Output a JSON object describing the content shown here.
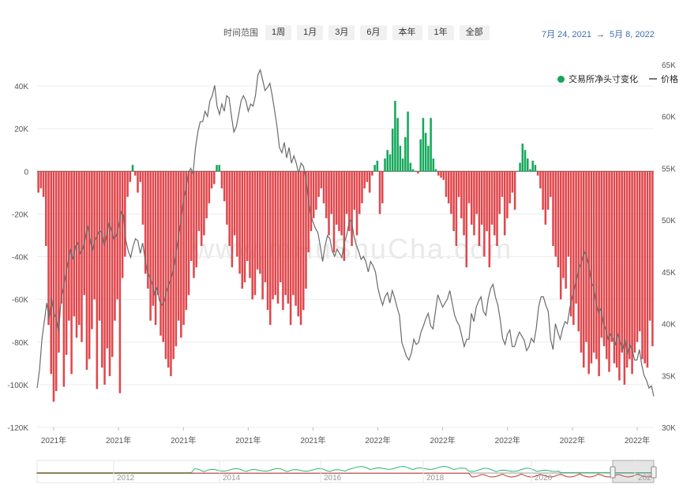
{
  "toolbar": {
    "label": "时间范围",
    "buttons": [
      "1周",
      "1月",
      "3月",
      "6月",
      "本年",
      "1年",
      "全部"
    ]
  },
  "date_range": {
    "start": "7月 24, 2021",
    "arrow": "→",
    "end": "5月 8, 2022"
  },
  "watermark": "www.mHuShuCha.com",
  "legend": {
    "bars": "交易所净头寸变化",
    "line": "价格"
  },
  "colors": {
    "positive": "#14a85a",
    "negative": "#e0464b",
    "price_line": "#6b6b6b",
    "date_text": "#3a6fb0"
  },
  "chart_data": {
    "type": "bar",
    "y_left": {
      "ticks": [
        "40K",
        "20K",
        "0",
        "-20K",
        "-40K",
        "-60K",
        "-80K",
        "-100K",
        "-120K"
      ],
      "values": [
        40000,
        20000,
        0,
        -20000,
        -40000,
        -60000,
        -80000,
        -100000,
        -120000
      ],
      "range": [
        -120000,
        50000
      ]
    },
    "y_right": {
      "ticks": [
        "65K",
        "60K",
        "55K",
        "50K",
        "45K",
        "40K",
        "35K",
        "30K"
      ],
      "values": [
        65000,
        60000,
        55000,
        50000,
        45000,
        40000,
        35000,
        30000
      ],
      "range": [
        30000,
        65000
      ]
    },
    "x_ticks": [
      "2021年",
      "2021年",
      "2021年",
      "2021年",
      "2021年",
      "2022年",
      "2022年",
      "2022年",
      "2022年",
      "2022年"
    ],
    "net_position_change": [
      -10000,
      -8000,
      -12000,
      -35000,
      -72000,
      -95000,
      -108000,
      -103000,
      -85000,
      -62000,
      -101000,
      -86000,
      -70000,
      -95000,
      -68000,
      -78000,
      -72000,
      -80000,
      -58000,
      -93000,
      -88000,
      -74000,
      -60000,
      -102000,
      -70000,
      -92000,
      -100000,
      -83000,
      -96000,
      -87000,
      -70000,
      -60000,
      -104000,
      -50000,
      -40000,
      -12000,
      -5000,
      3000,
      -2000,
      -10000,
      -5000,
      -25000,
      -48000,
      -55000,
      -70000,
      -63000,
      -72000,
      -58000,
      -77000,
      -80000,
      -88000,
      -92000,
      -96000,
      -88000,
      -82000,
      -70000,
      -78000,
      -72000,
      -65000,
      -58000,
      -42000,
      -50000,
      -45000,
      -28000,
      -35000,
      -30000,
      -22000,
      -15000,
      -8000,
      -6000,
      3000,
      3000,
      -8000,
      -14000,
      -25000,
      -35000,
      -45000,
      -30000,
      -40000,
      -48000,
      -55000,
      -52000,
      -42000,
      -50000,
      -60000,
      -58000,
      -46000,
      -48000,
      -60000,
      -52000,
      -65000,
      -72000,
      -60000,
      -58000,
      -62000,
      -52000,
      -65000,
      -58000,
      -62000,
      -72000,
      -58000,
      -63000,
      -68000,
      -72000,
      -65000,
      -55000,
      -38000,
      -28000,
      -22000,
      -18000,
      -12000,
      -8000,
      -15000,
      -22000,
      -30000,
      -20000,
      -38000,
      -25000,
      -28000,
      -30000,
      -42000,
      -20000,
      -28000,
      -35000,
      -18000,
      -30000,
      -20000,
      -15000,
      -8000,
      -5000,
      -10000,
      -2000,
      3000,
      5000,
      -20000,
      -15000,
      6000,
      10000,
      8000,
      20000,
      33000,
      25000,
      12000,
      6000,
      16000,
      28000,
      4000,
      1000,
      0,
      -1000,
      15000,
      25000,
      18000,
      12000,
      25000,
      6000,
      1000,
      -2000,
      -3000,
      -4000,
      -12000,
      -15000,
      -20000,
      -28000,
      -35000,
      -12000,
      -22000,
      -30000,
      -45000,
      -15000,
      -25000,
      -30000,
      -20000,
      -35000,
      -25000,
      -40000,
      -28000,
      -45000,
      -25000,
      -30000,
      -35000,
      -20000,
      -12000,
      -30000,
      -22000,
      -15000,
      -10000,
      -18000,
      0,
      4000,
      13000,
      10000,
      6000,
      1000,
      5000,
      3000,
      -2000,
      -8000,
      -18000,
      -25000,
      -18000,
      -12000,
      -35000,
      -40000,
      -45000,
      -60000,
      -50000,
      -55000,
      -40000,
      -68000,
      -72000,
      -62000,
      -75000,
      -85000,
      -92000,
      -80000,
      -95000,
      -90000,
      -85000,
      -88000,
      -96000,
      -78000,
      -82000,
      -88000,
      -94000,
      -80000,
      -90000,
      -92000,
      -98000,
      -85000,
      -100000,
      -92000,
      -88000,
      -95000,
      -85000,
      -80000,
      -75000,
      -88000,
      -90000,
      -92000,
      -70000,
      -82000
    ],
    "price": [
      33800,
      35500,
      38500,
      40200,
      42000,
      40500,
      42500,
      41000,
      40500,
      39200,
      42500,
      43500,
      44800,
      46000,
      47200,
      46200,
      47500,
      47800,
      46800,
      47200,
      48200,
      49500,
      48300,
      47000,
      48000,
      48500,
      49000,
      48800,
      47500,
      48600,
      49800,
      49000,
      48200,
      48500,
      49500,
      50800,
      50500,
      48000,
      47000,
      46400,
      47500,
      48200,
      48000,
      46800,
      47800,
      46200,
      45000,
      44500,
      43800,
      42800,
      43500,
      42200,
      41800,
      42200,
      43200,
      43800,
      44500,
      45500,
      47000,
      48500,
      50000,
      52000,
      53000,
      54500,
      55000,
      54500,
      57000,
      58500,
      59500,
      59500,
      60500,
      60000,
      61500,
      62000,
      63000,
      61000,
      60200,
      61200,
      60500,
      62000,
      61800,
      60000,
      58500,
      59000,
      60200,
      61500,
      62000,
      61500,
      60500,
      61200,
      61000,
      62000,
      64000,
      64500,
      63500,
      62500,
      62800,
      63200,
      62000,
      60500,
      59000,
      57000,
      56500,
      57500,
      56000,
      57000,
      55500,
      56200,
      55500,
      54500,
      55500,
      55200,
      54000,
      52000,
      50500,
      49800,
      49200,
      48800,
      47500,
      46000,
      47500,
      48500,
      48200,
      47000,
      46500,
      47200,
      46800,
      46400,
      47800,
      48500,
      49800,
      50000,
      48500,
      47600,
      47000,
      46200,
      46500,
      46000,
      45000,
      46000,
      45600,
      45000,
      43500,
      42500,
      41800,
      42600,
      43000,
      42000,
      43200,
      42500,
      41600,
      40800,
      38200,
      37500,
      36800,
      36500,
      37200,
      38500,
      38000,
      38200,
      39200,
      39800,
      40500,
      41000,
      39800,
      39500,
      41200,
      42800,
      42200,
      41600,
      42000,
      42400,
      43200,
      42000,
      40800,
      40200,
      39800,
      38800,
      37800,
      38500,
      38500,
      41000,
      40200,
      41600,
      42200,
      42600,
      41200,
      40800,
      42400,
      43400,
      43800,
      42600,
      41800,
      40400,
      38600,
      38000,
      39000,
      39400,
      37800,
      37800,
      38600,
      39200,
      38800,
      38400,
      37400,
      37800,
      38600,
      38200,
      39500,
      41600,
      42600,
      42600,
      41800,
      41200,
      38500,
      37500,
      40000,
      39200,
      38500,
      39500,
      40200,
      40000,
      41500,
      42500,
      43500,
      44500,
      45500,
      46000,
      47000,
      46500,
      45500,
      44000,
      43500,
      42000,
      41000,
      41500,
      40000,
      39500,
      38500,
      39000,
      38500,
      38000,
      39000,
      38200,
      37500,
      38500,
      37000,
      38000,
      37500,
      36500,
      36500,
      37500,
      36000,
      35000,
      34500,
      33800,
      34000,
      33000
    ],
    "navigator": {
      "x_ticks": [
        "2012",
        "2014",
        "2016",
        "2018",
        "2020",
        "202"
      ]
    }
  }
}
